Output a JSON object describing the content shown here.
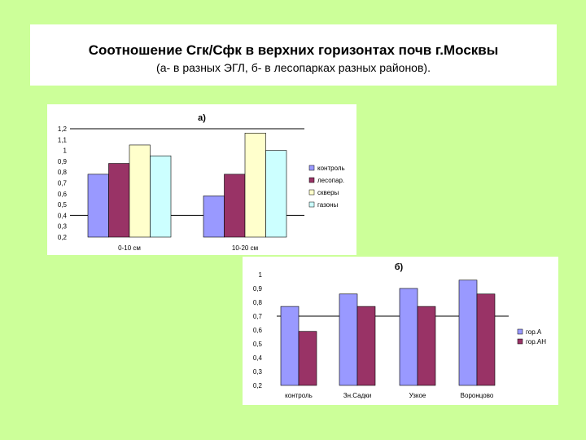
{
  "header": {
    "title": "Соотношение Сгк/Сфк в верхних горизонтах почв г.Москвы",
    "subtitle": "(а- в разных ЭГЛ, б- в лесопарках разных районов)."
  },
  "colors": {
    "background": "#ccff99",
    "series": [
      "#9999ff",
      "#993366",
      "#ffffcc",
      "#ccffff"
    ],
    "bar_border": "#000000"
  },
  "chart_data": [
    {
      "type": "bar",
      "title": "а)",
      "categories": [
        "0-10 см",
        "10-20 см"
      ],
      "series": [
        {
          "name": "контроль",
          "values": [
            0.78,
            0.58
          ]
        },
        {
          "name": "лесопар.",
          "values": [
            0.88,
            0.78
          ]
        },
        {
          "name": "скверы",
          "values": [
            1.05,
            1.16
          ]
        },
        {
          "name": "газоны",
          "values": [
            0.95,
            1.0
          ]
        }
      ],
      "yticks": [
        "1,2",
        "1,1",
        "1",
        "0,9",
        "0,8",
        "0,7",
        "0,6",
        "0,5",
        "0,4",
        "0,3",
        "0,2"
      ],
      "ylim": [
        0.2,
        1.2
      ],
      "gridlines": [
        1.2,
        0.4
      ],
      "legend_position": "right"
    },
    {
      "type": "bar",
      "title": "б)",
      "categories": [
        "контроль",
        "Зн.Садки",
        "Узкое",
        "Воронцово"
      ],
      "series": [
        {
          "name": "гор.А",
          "values": [
            0.77,
            0.86,
            0.9,
            0.96
          ]
        },
        {
          "name": "гор.АН",
          "values": [
            0.59,
            0.77,
            0.77,
            0.86
          ]
        }
      ],
      "yticks": [
        "1",
        "0,9",
        "0,8",
        "0,7",
        "0,6",
        "0,5",
        "0,4",
        "0,3",
        "0,2"
      ],
      "ylim": [
        0.2,
        1.0
      ],
      "gridlines": [
        0.7
      ],
      "legend_position": "right"
    }
  ]
}
